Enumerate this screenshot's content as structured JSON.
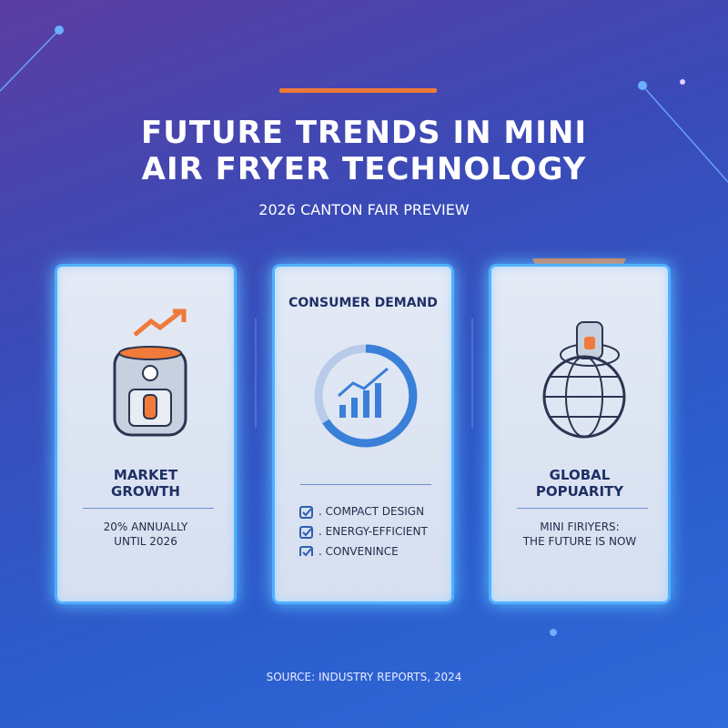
{
  "header": {
    "title_lines": [
      "FUTURE TRENDS IN MINI",
      "AIR FRYER TECHNOLOGY"
    ],
    "subtitle": "2026 CANTON FAIR PREVIEW"
  },
  "cards": [
    {
      "label_lines": [
        "MARKET",
        "GROWTH"
      ],
      "text_lines": [
        "20% ANNUALLY",
        "UNTIL 2026"
      ]
    },
    {
      "label": "CONSUMER DEMAND",
      "items": [
        ". COMPACT DESIGN",
        ". ENERGY-EFFICIENT",
        ". CONVENINCE"
      ]
    },
    {
      "label_lines": [
        "GLOBAL",
        "POPUARITY"
      ],
      "text_lines": [
        "MINI FIRIYERS:",
        "THE FUTURE IS NOW"
      ]
    }
  ],
  "footer": {
    "source": "SOURCE: INDUSTRY REPORTS, 2024"
  }
}
